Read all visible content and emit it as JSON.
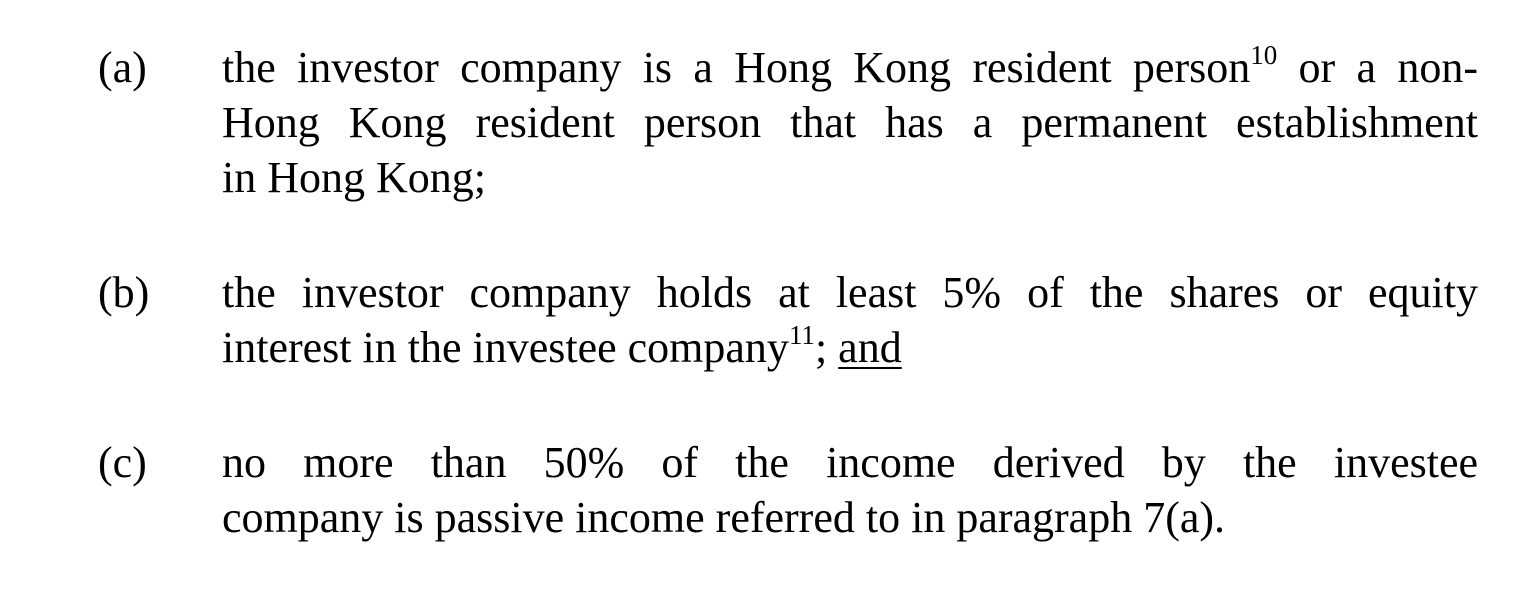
{
  "items": [
    {
      "label": "(a)",
      "lines": [
        {
          "text": "the investor company is a Hong Kong resident person",
          "sup": "10",
          "after": " or a non-"
        },
        {
          "text": "Hong Kong resident person that has a permanent establishment"
        },
        {
          "text": "in Hong Kong;"
        }
      ]
    },
    {
      "label": "(b)",
      "lines": [
        {
          "text": "the investor company holds at least 5% of the shares or equity"
        },
        {
          "text": "interest in the investee company",
          "sup": "11",
          "after": "; ",
          "underlined": "and"
        }
      ]
    },
    {
      "label": "(c)",
      "lines": [
        {
          "text": "no more than 50% of the income derived by the investee"
        },
        {
          "text": "company is passive income referred to in paragraph 7(a)."
        }
      ]
    }
  ]
}
